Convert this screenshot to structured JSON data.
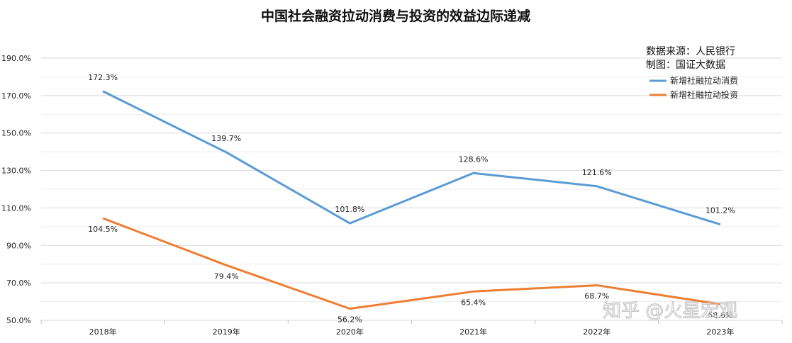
{
  "chart_data": {
    "type": "line",
    "title": "中国社会融资拉动消费与投资的效益边际递减",
    "categories": [
      "2018年",
      "2019年",
      "2020年",
      "2021年",
      "2022年",
      "2023年"
    ],
    "yticks": [
      "50.0%",
      "70.0%",
      "90.0%",
      "110.0%",
      "130.0%",
      "150.0%",
      "170.0%",
      "190.0%"
    ],
    "ylim": [
      50,
      190
    ],
    "grid": true,
    "legend_position": "top-right",
    "series": [
      {
        "name": "新增社融拉动消费",
        "color": "#5b9bd5",
        "values": [
          172.3,
          139.7,
          101.8,
          128.6,
          121.6,
          101.2
        ],
        "labels": [
          "172.3%",
          "139.7%",
          "101.8%",
          "128.6%",
          "121.6%",
          "101.2%"
        ]
      },
      {
        "name": "新增社融拉动投资",
        "color": "#ed7d31",
        "values": [
          104.5,
          79.4,
          56.2,
          65.4,
          68.7,
          58.6
        ],
        "labels": [
          "104.5%",
          "79.4%",
          "56.2%",
          "65.4%",
          "68.7%",
          "58.6%"
        ]
      }
    ]
  },
  "annotations": {
    "source": "数据来源：人民银行",
    "maker": "制图：国证大数据"
  },
  "watermark": "知乎 @火星宏观"
}
